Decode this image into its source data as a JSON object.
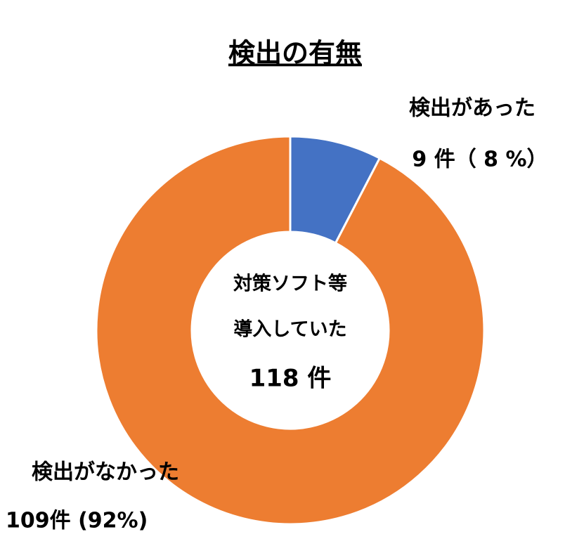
{
  "chart_data": {
    "type": "donut",
    "title": "検出の有無",
    "categories": [
      "検出があった",
      "検出がなかった"
    ],
    "values": [
      9,
      109
    ],
    "value_labels": [
      "9 件（ 8 %）",
      "109件 (92%)"
    ],
    "colors": [
      "#4472c4",
      "#ed7d31"
    ],
    "center_text": [
      "対策ソフト等",
      "導入していた",
      "118 件"
    ]
  }
}
